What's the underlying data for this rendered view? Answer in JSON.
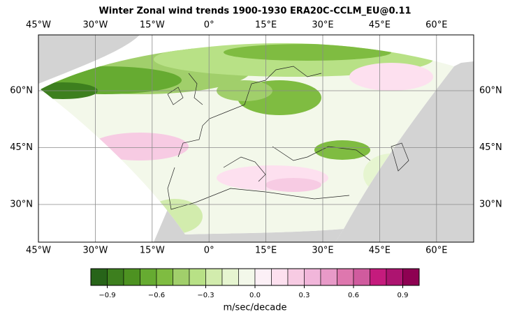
{
  "title": "Winter Zonal wind trends 1900-1930 ERA20C-CCLM_EU@0.11",
  "map": {
    "lon_labels": [
      "45°W",
      "30°W",
      "15°W",
      "0°",
      "15°E",
      "30°E",
      "45°E",
      "60°E"
    ],
    "lat_labels": [
      "60°N",
      "45°N",
      "30°N"
    ]
  },
  "colorbar": {
    "label": "m/sec/decade",
    "clim": [
      -1,
      1
    ],
    "colors": [
      "#276419",
      "#3d7f1e",
      "#4d9221",
      "#66ab31",
      "#7fbc41",
      "#a1cf6b",
      "#b8e186",
      "#d2ecad",
      "#e6f5d0",
      "#f3f8ea",
      "#fcf0f6",
      "#fde0ef",
      "#f7cbe3",
      "#f1b6da",
      "#e89ac8",
      "#de77ae",
      "#d05b9e",
      "#c51b7d",
      "#ad1470",
      "#8e0152"
    ],
    "ticks": [
      {
        "value": -0.9,
        "label": "−0.9"
      },
      {
        "value": -0.6,
        "label": "−0.6"
      },
      {
        "value": -0.3,
        "label": "−0.3"
      },
      {
        "value": 0,
        "label": "0.0"
      },
      0.3,
      0.6,
      0.9
    ]
  }
}
